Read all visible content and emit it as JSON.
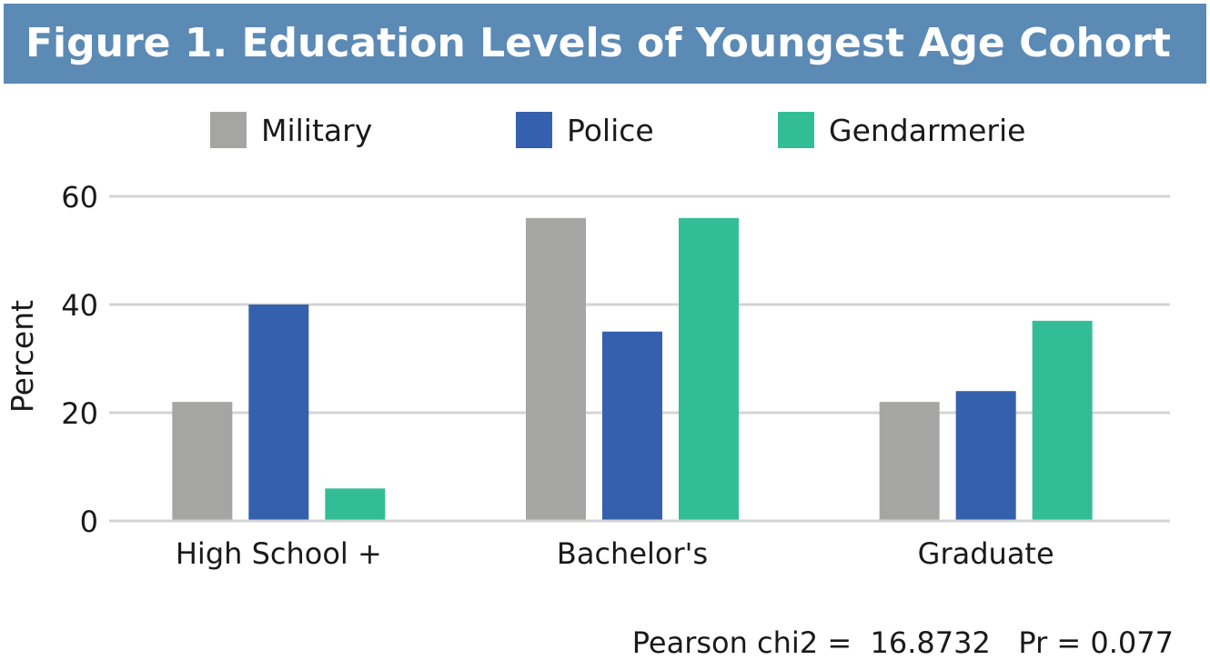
{
  "header": {
    "title": "Figure 1. Education Levels of Youngest Age Cohort"
  },
  "footnote": {
    "text": "Pearson chi2 =  16.8732   Pr = 0.077"
  },
  "chart_data": {
    "type": "bar",
    "title": "Figure 1. Education Levels of Youngest Age Cohort",
    "xlabel": "",
    "ylabel": "Percent",
    "ylim": [
      0,
      60
    ],
    "yticks": [
      0,
      20,
      40,
      60
    ],
    "grid": true,
    "legend_position": "top",
    "categories": [
      "High School +",
      "Bachelor's",
      "Graduate"
    ],
    "series": [
      {
        "name": "Military",
        "color": "#a5a5a4",
        "values": [
          22,
          56,
          22
        ]
      },
      {
        "name": "Police",
        "color": "#3560ad",
        "values": [
          40,
          35,
          24
        ]
      },
      {
        "name": "Gendarmerie",
        "color": "#33bd96",
        "values": [
          6,
          56,
          37
        ]
      }
    ]
  }
}
